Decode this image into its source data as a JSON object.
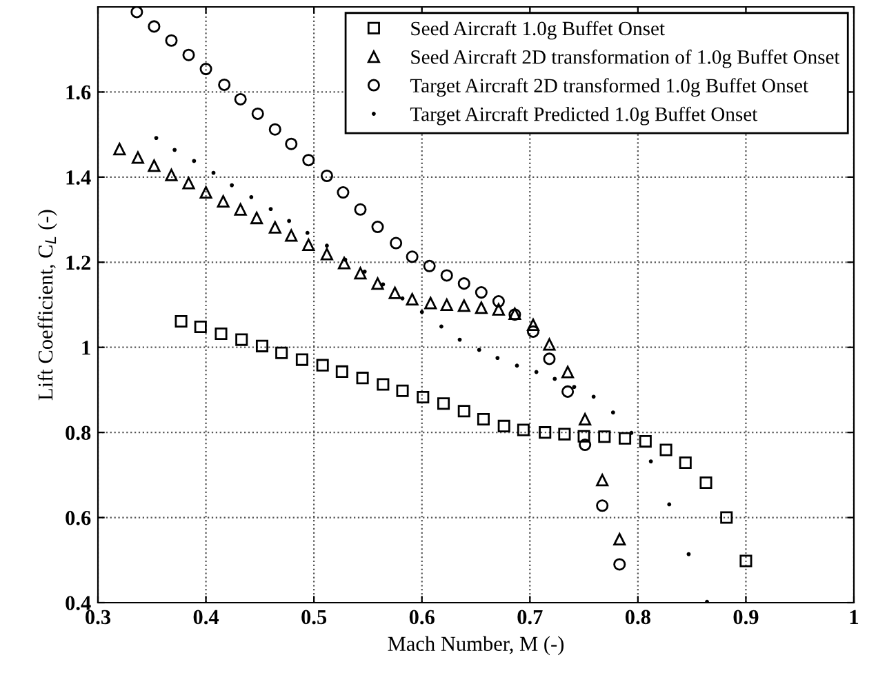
{
  "chart_data": {
    "type": "scatter",
    "xlabel": "Mach Number, M (-)",
    "ylabel": "Lift Coefficient, C$_{L}$ (-)",
    "xlim": [
      0.3,
      1
    ],
    "ylim": [
      0.4,
      1.8
    ],
    "xticks": [
      0.3,
      0.4,
      0.5,
      0.6,
      0.7,
      0.8,
      0.9,
      1
    ],
    "yticks": [
      0.4,
      0.6,
      0.8,
      1,
      1.2,
      1.4,
      1.6
    ],
    "grid": true,
    "legend": "top right",
    "series": [
      {
        "name": "Seed Aircraft 1.0g Buffet Onset",
        "color": "#000000",
        "marker": "square",
        "x": [
          0.377,
          0.395,
          0.414,
          0.433,
          0.452,
          0.47,
          0.489,
          0.508,
          0.526,
          0.545,
          0.564,
          0.582,
          0.601,
          0.62,
          0.639,
          0.657,
          0.676,
          0.694,
          0.714,
          0.732,
          0.75,
          0.769,
          0.788,
          0.807,
          0.826,
          0.844,
          0.863,
          0.882,
          0.9
        ],
        "values": [
          1.061,
          1.048,
          1.032,
          1.018,
          1.003,
          0.987,
          0.971,
          0.958,
          0.943,
          0.928,
          0.913,
          0.898,
          0.883,
          0.868,
          0.85,
          0.831,
          0.815,
          0.806,
          0.8,
          0.796,
          0.791,
          0.79,
          0.786,
          0.779,
          0.759,
          0.729,
          0.682,
          0.6,
          0.498
        ]
      },
      {
        "name": "Seed Aircraft 2D transformation of 1.0g Buffet Onset",
        "color": "#000000",
        "marker": "triangle",
        "x": [
          0.32,
          0.337,
          0.352,
          0.368,
          0.384,
          0.4,
          0.416,
          0.432,
          0.447,
          0.464,
          0.479,
          0.495,
          0.512,
          0.528,
          0.543,
          0.559,
          0.575,
          0.591,
          0.608,
          0.623,
          0.639,
          0.655,
          0.671,
          0.686,
          0.703,
          0.718,
          0.735,
          0.751,
          0.767,
          0.783
        ],
        "values": [
          1.466,
          1.446,
          1.427,
          1.405,
          1.386,
          1.364,
          1.343,
          1.324,
          1.304,
          1.282,
          1.263,
          1.241,
          1.219,
          1.198,
          1.174,
          1.15,
          1.128,
          1.113,
          1.104,
          1.1,
          1.098,
          1.093,
          1.089,
          1.079,
          1.053,
          1.007,
          0.942,
          0.831,
          0.688,
          0.549
        ]
      },
      {
        "name": "Target Aircraft 2D transformed 1.0g Buffet Onset",
        "color": "#000000",
        "marker": "circle",
        "x": [
          0.336,
          0.352,
          0.368,
          0.384,
          0.4,
          0.417,
          0.432,
          0.448,
          0.464,
          0.479,
          0.495,
          0.512,
          0.527,
          0.543,
          0.559,
          0.576,
          0.591,
          0.607,
          0.623,
          0.639,
          0.655,
          0.671,
          0.686,
          0.703,
          0.718,
          0.735,
          0.751,
          0.767,
          0.783
        ],
        "values": [
          1.788,
          1.754,
          1.721,
          1.687,
          1.654,
          1.617,
          1.583,
          1.549,
          1.512,
          1.478,
          1.44,
          1.403,
          1.364,
          1.324,
          1.283,
          1.245,
          1.213,
          1.191,
          1.169,
          1.15,
          1.129,
          1.108,
          1.077,
          1.037,
          0.973,
          0.896,
          0.771,
          0.628,
          0.49
        ]
      },
      {
        "name": "Target Aircraft Predicted 1.0g Buffet Onset",
        "color": "#000000",
        "x": [
          0.354,
          0.371,
          0.389,
          0.407,
          0.424,
          0.442,
          0.46,
          0.477,
          0.494,
          0.512,
          0.529,
          0.547,
          0.564,
          0.582,
          0.6,
          0.618,
          0.635,
          0.653,
          0.67,
          0.688,
          0.706,
          0.723,
          0.741,
          0.759,
          0.777,
          0.794,
          0.812,
          0.829,
          0.847,
          0.864
        ],
        "values": [
          1.492,
          1.464,
          1.438,
          1.41,
          1.381,
          1.353,
          1.325,
          1.297,
          1.269,
          1.239,
          1.206,
          1.178,
          1.148,
          1.115,
          1.083,
          1.049,
          1.018,
          0.994,
          0.975,
          0.957,
          0.942,
          0.926,
          0.907,
          0.884,
          0.847,
          0.799,
          0.732,
          0.631,
          0.514,
          0.402
        ]
      }
    ]
  }
}
